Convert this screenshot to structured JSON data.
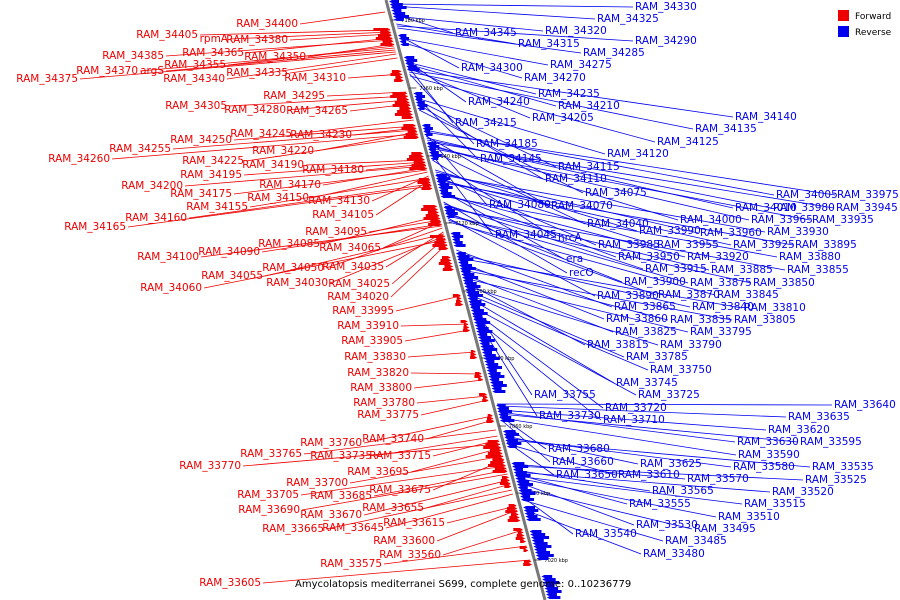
{
  "caption": "Amycolatopsis mediterranei S699, complete genome: 0..10236779",
  "legend": [
    {
      "label": "Forward",
      "color": "#ee0000"
    },
    {
      "label": "Reverse",
      "color": "#0000ee"
    }
  ],
  "colors": {
    "forward": "#ee0000",
    "reverse": "#0000ee",
    "backbone": "#777777"
  },
  "ticks": [
    "7180 kbp",
    "7160 kbp",
    "7140 kbp",
    "7120 kbp",
    "7100 kbp",
    "7080 kbp",
    "7060 kbp",
    "7040 kbp",
    "7020 kbp"
  ],
  "forward_labels": [
    "RAM_34400",
    "RAM_34405",
    "rpmA",
    "RAM_34380",
    "RAM_34385",
    "RAM_34365",
    "RAM_34350",
    "RAM_34355",
    "RAM_34370",
    "argS",
    "RAM_34375",
    "RAM_34340",
    "RAM_34335",
    "RAM_34310",
    "RAM_34295",
    "RAM_34305",
    "RAM_34280",
    "RAM_34265",
    "RAM_34250",
    "RAM_34245",
    "RAM_34230",
    "RAM_34255",
    "RAM_34220",
    "RAM_34260",
    "RAM_34225",
    "RAM_34190",
    "RAM_34195",
    "RAM_34180",
    "RAM_34200",
    "RAM_34170",
    "RAM_34175",
    "RAM_34150",
    "RAM_34130",
    "RAM_34155",
    "RAM_34105",
    "RAM_34160",
    "RAM_34165",
    "RAM_34095",
    "RAM_34085",
    "RAM_34065",
    "RAM_34090",
    "RAM_34100",
    "RAM_34050",
    "RAM_34035",
    "RAM_34055",
    "RAM_34030",
    "RAM_34025",
    "RAM_34060",
    "RAM_34020",
    "RAM_33995",
    "RAM_33910",
    "RAM_33905",
    "RAM_33830",
    "RAM_33820",
    "RAM_33800",
    "RAM_33780",
    "RAM_33775",
    "RAM_33760",
    "RAM_33740",
    "RAM_33765",
    "RAM_33735",
    "RAM_33715",
    "RAM_33770",
    "RAM_33695",
    "RAM_33700",
    "RAM_33675",
    "RAM_33705",
    "RAM_33685",
    "RAM_33690",
    "RAM_33670",
    "RAM_33655",
    "RAM_33665",
    "RAM_33645",
    "RAM_33615",
    "RAM_33600",
    "RAM_33560",
    "RAM_33575",
    "RAM_33605"
  ],
  "reverse_labels": [
    "RAM_34330",
    "RAM_34325",
    "RAM_34345",
    "RAM_34320",
    "RAM_34315",
    "RAM_34290",
    "RAM_34285",
    "RAM_34300",
    "RAM_34275",
    "RAM_34270",
    "RAM_34240",
    "RAM_34235",
    "RAM_34210",
    "RAM_34215",
    "RAM_34205",
    "RAM_34140",
    "RAM_34135",
    "RAM_34185",
    "RAM_34125",
    "RAM_34145",
    "RAM_34120",
    "RAM_34115",
    "RAM_34110",
    "RAM_34075",
    "RAM_34005",
    "RAM_33975",
    "RAM_34080",
    "RAM_34070",
    "RAM_34010",
    "RAM_33980",
    "RAM_33945",
    "RAM_34000",
    "RAM_33965",
    "RAM_33935",
    "RAM_34040",
    "RAM_34045",
    "hrcA",
    "RAM_33990",
    "RAM_33960",
    "RAM_33930",
    "RAM_33985",
    "RAM_33955",
    "RAM_33925",
    "RAM_33895",
    "era",
    "RAM_33950",
    "RAM_33920",
    "RAM_33880",
    "recO",
    "RAM_33915",
    "RAM_33885",
    "RAM_33855",
    "RAM_33900",
    "RAM_33875",
    "RAM_33850",
    "RAM_33890",
    "RAM_33870",
    "RAM_33845",
    "RAM_33865",
    "RAM_33840",
    "RAM_33810",
    "RAM_33860",
    "RAM_33835",
    "RAM_33805",
    "RAM_33825",
    "RAM_33795",
    "RAM_33815",
    "RAM_33790",
    "RAM_33785",
    "RAM_33750",
    "RAM_33745",
    "RAM_33755",
    "RAM_33725",
    "RAM_33720",
    "RAM_33730",
    "RAM_33710",
    "RAM_33640",
    "RAM_33635",
    "RAM_33620",
    "RAM_33630",
    "RAM_33595",
    "RAM_33680",
    "RAM_33590",
    "RAM_33660",
    "RAM_33625",
    "RAM_33580",
    "RAM_33535",
    "RAM_33650",
    "RAM_33610",
    "RAM_33570",
    "RAM_33525",
    "RAM_33565",
    "RAM_33520",
    "RAM_33555",
    "RAM_33515",
    "RAM_33510",
    "RAM_33530",
    "RAM_33495",
    "RAM_33540",
    "RAM_33485",
    "RAM_33480"
  ]
}
